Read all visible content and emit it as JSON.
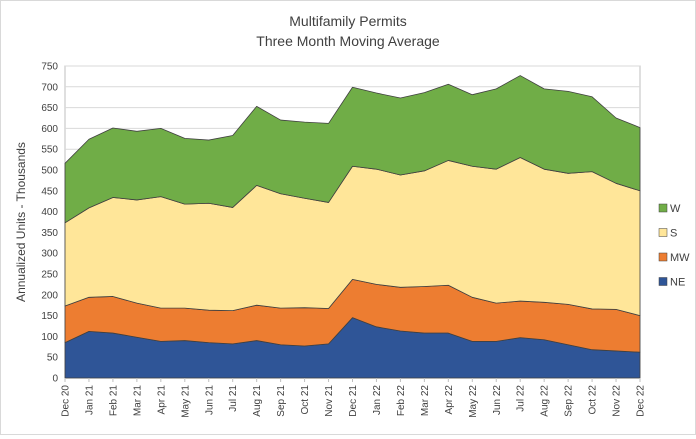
{
  "chart_data": {
    "type": "area",
    "stacked": true,
    "title": "Multifamily Permits",
    "subtitle": "Three Month Moving Average",
    "xlabel": "",
    "ylabel": "Annualized Units - Thousands",
    "ylim": [
      0,
      750
    ],
    "yticks": [
      0,
      50,
      100,
      150,
      200,
      250,
      300,
      350,
      400,
      450,
      500,
      550,
      600,
      650,
      700,
      750
    ],
    "grid": true,
    "legend_position": "right",
    "categories": [
      "Dec 20",
      "Jan 21",
      "Feb 21",
      "Mar 21",
      "Apr 21",
      "May 21",
      "Jun 21",
      "Jul 21",
      "Aug 21",
      "Sep 21",
      "Oct 21",
      "Nov 21",
      "Dec 21",
      "Jan 22",
      "Feb 22",
      "Mar 22",
      "Apr 22",
      "May 22",
      "Jun 22",
      "Jul 22",
      "Aug 22",
      "Sep 22",
      "Oct 22",
      "Nov 22",
      "Dec 22"
    ],
    "series": [
      {
        "name": "NE",
        "color": "#2f5597",
        "values": [
          85,
          112,
          108,
          98,
          88,
          90,
          85,
          82,
          90,
          80,
          77,
          82,
          145,
          123,
          113,
          108,
          108,
          88,
          88,
          97,
          92,
          80,
          68,
          65,
          62
        ]
      },
      {
        "name": "MW",
        "color": "#ed7d31",
        "values": [
          88,
          82,
          88,
          82,
          80,
          78,
          78,
          80,
          85,
          88,
          92,
          85,
          92,
          102,
          105,
          112,
          115,
          106,
          92,
          88,
          90,
          97,
          98,
          100,
          88
        ]
      },
      {
        "name": "S",
        "color": "#ffe699",
        "values": [
          200,
          215,
          238,
          248,
          268,
          250,
          257,
          248,
          288,
          275,
          263,
          255,
          272,
          277,
          270,
          278,
          300,
          315,
          322,
          345,
          320,
          315,
          330,
          303,
          300
        ]
      },
      {
        "name": "W",
        "color": "#70ad47",
        "values": [
          143,
          165,
          167,
          165,
          164,
          158,
          152,
          173,
          190,
          177,
          183,
          190,
          190,
          183,
          185,
          188,
          183,
          172,
          193,
          197,
          193,
          197,
          180,
          157,
          152
        ]
      }
    ]
  }
}
